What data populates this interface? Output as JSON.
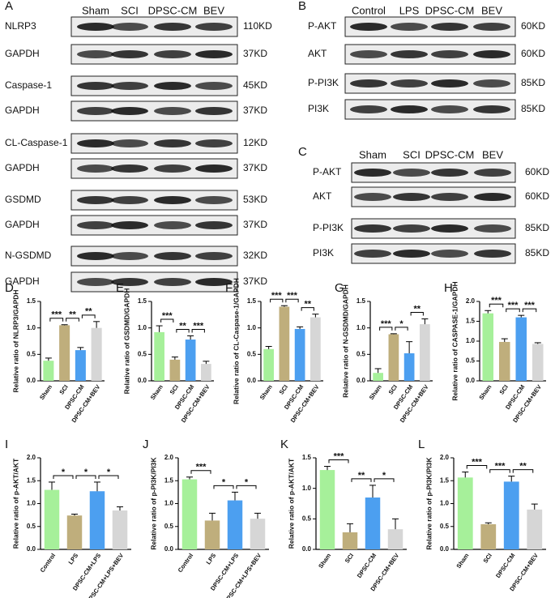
{
  "blots": [
    {
      "panel": "A",
      "lanes": [
        "Sham",
        "SCI",
        "DPSC-CM",
        "BEV"
      ],
      "rows": [
        {
          "label": "NLRP3",
          "size": "110KD"
        },
        {
          "label": "GAPDH",
          "size": "37KD"
        },
        {
          "label": "Caspase-1",
          "size": "45KD"
        },
        {
          "label": "GAPDH",
          "size": "37KD"
        },
        {
          "label": "CL-Caspase-1",
          "size": "12KD"
        },
        {
          "label": "GAPDH",
          "size": "37KD"
        },
        {
          "label": "GSDMD",
          "size": "53KD"
        },
        {
          "label": "GAPDH",
          "size": "37KD"
        },
        {
          "label": "N-GSDMD",
          "size": "32KD"
        },
        {
          "label": "GAPDH",
          "size": "37KD"
        }
      ]
    },
    {
      "panel": "B",
      "lanes": [
        "Control",
        "LPS",
        "DPSC-CM",
        "BEV"
      ],
      "rows": [
        {
          "label": "P-AKT",
          "size": "60KD"
        },
        {
          "label": "AKT",
          "size": "60KD"
        },
        {
          "label": "P-PI3K",
          "size": "85KD"
        },
        {
          "label": "PI3K",
          "size": "85KD"
        }
      ]
    },
    {
      "panel": "C",
      "lanes": [
        "Sham",
        "SCI",
        "DPSC-CM",
        "BEV"
      ],
      "rows": [
        {
          "label": "P-AKT",
          "size": "60KD"
        },
        {
          "label": "AKT",
          "size": "60KD"
        },
        {
          "label": "P-PI3K",
          "size": "85KD"
        },
        {
          "label": "PI3K",
          "size": "85KD"
        }
      ]
    }
  ],
  "chart_data": [
    {
      "type": "bar",
      "panel": "D",
      "y_label": "Relative ratio of NLRP3/GAPDH",
      "categories": [
        "Sham",
        "SCI",
        "DPSC-CM",
        "DPSC-CM+BEV"
      ],
      "values": [
        0.38,
        1.05,
        0.58,
        1.0
      ],
      "errors": [
        0.05,
        0.01,
        0.05,
        0.12
      ],
      "colors": [
        "#a6f09a",
        "#bfae7c",
        "#4c9ff0",
        "#d6d6d6"
      ],
      "ylim": [
        0,
        1.5
      ],
      "yticks": [
        {
          "value": 0,
          "label": "0.0"
        },
        0.5,
        {
          "value": 1,
          "label": "1.0"
        },
        1.5
      ],
      "significance": [
        {
          "from": 0,
          "to": 1,
          "label": "***"
        },
        {
          "from": 1,
          "to": 2,
          "label": "**"
        },
        {
          "from": 2,
          "to": 3,
          "label": "**"
        }
      ]
    },
    {
      "type": "bar",
      "panel": "E",
      "y_label": "Relative ratio of GSDMD/GAPDH",
      "categories": [
        "Sham",
        "SCI",
        "DPSC-CM",
        "DPSC-CM+BEV"
      ],
      "values": [
        0.92,
        0.4,
        0.78,
        0.32
      ],
      "errors": [
        0.12,
        0.05,
        0.07,
        0.05
      ],
      "colors": [
        "#a6f09a",
        "#bfae7c",
        "#4c9ff0",
        "#d6d6d6"
      ],
      "ylim": [
        0,
        1.5
      ],
      "yticks": [
        {
          "value": 0,
          "label": "0.0"
        },
        0.5,
        {
          "value": 1,
          "label": "1.0"
        },
        1.5
      ],
      "significance": [
        {
          "from": 0,
          "to": 1,
          "label": "***"
        },
        {
          "from": 1,
          "to": 2,
          "label": "**"
        },
        {
          "from": 2,
          "to": 3,
          "label": "***"
        }
      ]
    },
    {
      "type": "bar",
      "panel": "F",
      "y_label": "Relative ratio of CL-Caspase-1/GAPDH",
      "categories": [
        "Sham",
        "SCI",
        "DPSC-CM",
        "DPSC-CM+BEV"
      ],
      "values": [
        0.6,
        1.4,
        0.98,
        1.2
      ],
      "errors": [
        0.05,
        0.02,
        0.04,
        0.06
      ],
      "colors": [
        "#a6f09a",
        "#bfae7c",
        "#4c9ff0",
        "#d6d6d6"
      ],
      "ylim": [
        0,
        1.5
      ],
      "yticks": [
        {
          "value": 0,
          "label": "0.0"
        },
        0.5,
        {
          "value": 1,
          "label": "1.0"
        },
        1.5
      ],
      "significance": [
        {
          "from": 0,
          "to": 1,
          "label": "***"
        },
        {
          "from": 1,
          "to": 2,
          "label": "***"
        },
        {
          "from": 2,
          "to": 3,
          "label": "**"
        }
      ]
    },
    {
      "type": "bar",
      "panel": "G",
      "y_label": "Relative ratio of N-GSDMD/GAPDH",
      "categories": [
        "Sham",
        "SCI",
        "DPSC-CM",
        "DPSC-CM+BEV"
      ],
      "values": [
        0.15,
        0.88,
        0.52,
        1.07
      ],
      "errors": [
        0.08,
        0.01,
        0.22,
        0.1
      ],
      "colors": [
        "#a6f09a",
        "#bfae7c",
        "#4c9ff0",
        "#d6d6d6"
      ],
      "ylim": [
        0,
        1.5
      ],
      "yticks": [
        {
          "value": 0,
          "label": "0.0"
        },
        0.5,
        {
          "value": 1,
          "label": "1.0"
        },
        1.5
      ],
      "significance": [
        {
          "from": 0,
          "to": 1,
          "label": "***"
        },
        {
          "from": 1,
          "to": 2,
          "label": "*"
        },
        {
          "from": 2,
          "to": 3,
          "label": "**"
        }
      ]
    },
    {
      "type": "bar",
      "panel": "H",
      "y_label": "Relative ratio of CASPASE-1/GAPDH",
      "categories": [
        "Sham",
        "SCI",
        "DPSC-CM",
        "DPSC-CM+BEV"
      ],
      "values": [
        1.7,
        0.98,
        1.6,
        0.93
      ],
      "errors": [
        0.07,
        0.08,
        0.05,
        0.03
      ],
      "colors": [
        "#a6f09a",
        "#bfae7c",
        "#4c9ff0",
        "#d6d6d6"
      ],
      "ylim": [
        0,
        2
      ],
      "yticks": [
        {
          "value": 0,
          "label": "0.0"
        },
        0.5,
        {
          "value": 1,
          "label": "1.0"
        },
        1.5,
        {
          "value": 2,
          "label": "2.0"
        }
      ],
      "significance": [
        {
          "from": 0,
          "to": 1,
          "label": "***"
        },
        {
          "from": 1,
          "to": 2,
          "label": "***"
        },
        {
          "from": 2,
          "to": 3,
          "label": "***"
        }
      ]
    },
    {
      "type": "bar",
      "panel": "I",
      "y_label": "Relative ratio of p-AKT/AKT",
      "categories": [
        "Control",
        "LPS",
        "DPSC-CM+LPS",
        "DPSC-CM+LPS+BEV"
      ],
      "values": [
        1.3,
        0.74,
        1.27,
        0.85
      ],
      "errors": [
        0.17,
        0.03,
        0.2,
        0.08
      ],
      "colors": [
        "#a6f09a",
        "#bfae7c",
        "#4c9ff0",
        "#d6d6d6"
      ],
      "ylim": [
        0,
        2
      ],
      "yticks": [
        {
          "value": 0,
          "label": "0.0"
        },
        0.5,
        {
          "value": 1,
          "label": "1.0"
        },
        1.5,
        {
          "value": 2,
          "label": "2.0"
        }
      ],
      "significance": [
        {
          "from": 0,
          "to": 1,
          "label": "*"
        },
        {
          "from": 1,
          "to": 2,
          "label": "*"
        },
        {
          "from": 2,
          "to": 3,
          "label": "*"
        }
      ]
    },
    {
      "type": "bar",
      "panel": "J",
      "y_label": "Relative ratio of p-PI3K/PI3K",
      "categories": [
        "Control",
        "LPS",
        "DPSC-CM+LPS",
        "DPSC-CM+LPS+BEV"
      ],
      "values": [
        1.53,
        0.63,
        1.07,
        0.67
      ],
      "errors": [
        0.05,
        0.16,
        0.18,
        0.12
      ],
      "colors": [
        "#a6f09a",
        "#bfae7c",
        "#4c9ff0",
        "#d6d6d6"
      ],
      "ylim": [
        0,
        2
      ],
      "yticks": [
        {
          "value": 0,
          "label": "0.0"
        },
        0.5,
        {
          "value": 1,
          "label": "1.0"
        },
        1.5,
        {
          "value": 2,
          "label": "2.0"
        }
      ],
      "significance": [
        {
          "from": 0,
          "to": 1,
          "label": "***"
        },
        {
          "from": 1,
          "to": 2,
          "label": "*"
        },
        {
          "from": 2,
          "to": 3,
          "label": "*"
        }
      ]
    },
    {
      "type": "bar",
      "panel": "K",
      "y_label": "Relative ratio of p-AKT/AKT",
      "categories": [
        "Sham",
        "SCI",
        "DPSC-CM",
        "DPSC-CM+BEV"
      ],
      "values": [
        1.3,
        0.28,
        0.85,
        0.33
      ],
      "errors": [
        0.06,
        0.14,
        0.2,
        0.17
      ],
      "colors": [
        "#a6f09a",
        "#bfae7c",
        "#4c9ff0",
        "#d6d6d6"
      ],
      "ylim": [
        0,
        1.5
      ],
      "yticks": [
        {
          "value": 0,
          "label": "0.0"
        },
        0.5,
        {
          "value": 1,
          "label": "1.0"
        },
        1.5
      ],
      "significance": [
        {
          "from": 0,
          "to": 1,
          "label": "***"
        },
        {
          "from": 1,
          "to": 2,
          "label": "**"
        },
        {
          "from": 2,
          "to": 3,
          "label": "*"
        }
      ]
    },
    {
      "type": "bar",
      "panel": "L",
      "y_label": "Relative ratio of p-PI3K/PI3K",
      "categories": [
        "Sham",
        "SCI",
        "DPSC-CM",
        "DPSC-CM+BEV"
      ],
      "values": [
        1.57,
        0.55,
        1.48,
        0.87
      ],
      "errors": [
        0.12,
        0.03,
        0.12,
        0.12
      ],
      "colors": [
        "#a6f09a",
        "#bfae7c",
        "#4c9ff0",
        "#d6d6d6"
      ],
      "ylim": [
        0,
        2
      ],
      "yticks": [
        {
          "value": 0,
          "label": "0.0"
        },
        0.5,
        {
          "value": 1,
          "label": "1.0"
        },
        1.5,
        {
          "value": 2,
          "label": "2.0"
        }
      ],
      "significance": [
        {
          "from": 0,
          "to": 1,
          "label": "***"
        },
        {
          "from": 1,
          "to": 2,
          "label": "***"
        },
        {
          "from": 2,
          "to": 3,
          "label": "**"
        }
      ]
    }
  ]
}
